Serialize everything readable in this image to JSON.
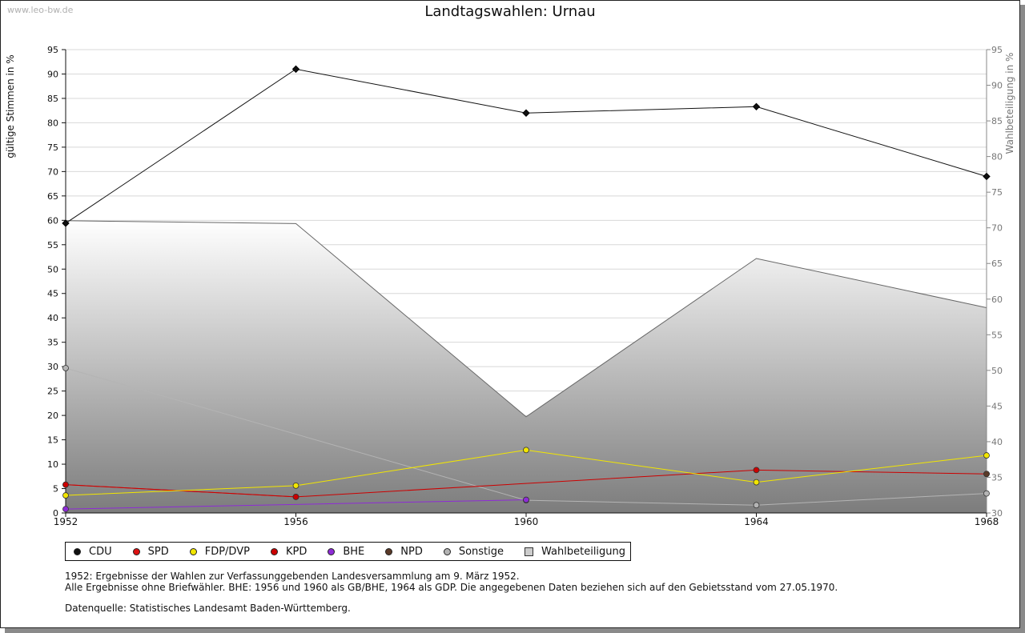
{
  "watermark": "www.leo-bw.de",
  "title": "Landtagswahlen: Urnau",
  "colors": {
    "CDU": "#111111",
    "SPD": "#dd1111",
    "FDP/DVP": "#f2e600",
    "KPD": "#cc0000",
    "BHE": "#8e2bd6",
    "NPD": "#5a3a28",
    "Sonstige": "#b4b4b4",
    "Wahlbeteiligung": "#cccccc"
  },
  "chart_data": {
    "type": "line",
    "title": "Landtagswahlen: Urnau",
    "xlabel": "",
    "ylabel": "gültige Stimmen in %",
    "y2label": "Wahlbeteiligung in %",
    "x": [
      1952,
      1956,
      1960,
      1964,
      1968
    ],
    "ylim": [
      0,
      95
    ],
    "y2lim": [
      30,
      95
    ],
    "yticks": [
      "0",
      "5",
      "10",
      "15",
      "20",
      "25",
      "30",
      "35",
      "40",
      "45",
      "50",
      "55",
      "60",
      "65",
      "70",
      "75",
      "80",
      "85",
      "90",
      "95"
    ],
    "y2ticks": [
      "30",
      "35",
      "40",
      "45",
      "50",
      "55",
      "60",
      "65",
      "70",
      "75",
      "80",
      "85",
      "90",
      "95"
    ],
    "xticks": [
      "1952",
      "1956",
      "1960",
      "1964",
      "1968"
    ],
    "grid": true,
    "legend_position": "bottom",
    "series": [
      {
        "name": "CDU",
        "values": [
          59.4,
          91.0,
          82.0,
          83.3,
          69.0
        ]
      },
      {
        "name": "SPD",
        "values": [
          5.8,
          3.3,
          null,
          null,
          null
        ]
      },
      {
        "name": "FDP/DVP",
        "values": [
          3.6,
          5.6,
          12.9,
          6.3,
          11.8
        ]
      },
      {
        "name": "KPD",
        "values": [
          5.8,
          3.3,
          null,
          8.8,
          8.0
        ]
      },
      {
        "name": "BHE",
        "values": [
          0.8,
          null,
          2.7,
          null,
          null
        ]
      },
      {
        "name": "NPD",
        "values": [
          null,
          null,
          null,
          null,
          8.0
        ]
      },
      {
        "name": "Sonstige",
        "values": [
          29.7,
          null,
          2.6,
          1.6,
          4.0
        ]
      }
    ],
    "turnout": {
      "name": "Wahlbeteiligung",
      "values": [
        71.0,
        70.6,
        43.5,
        65.7,
        58.8
      ]
    }
  },
  "legend": [
    "CDU",
    "SPD",
    "FDP/DVP",
    "KPD",
    "BHE",
    "NPD",
    "Sonstige",
    "Wahlbeteiligung"
  ],
  "notes": {
    "line1": "1952: Ergebnisse der Wahlen zur Verfassunggebenden Landesversammlung am 9. März 1952.",
    "line2": "Alle Ergebnisse ohne Briefwähler. BHE: 1956 und 1960 als GB/BHE, 1964 als GDP. Die angegebenen Daten beziehen sich auf den Gebietsstand vom 27.05.1970.",
    "source": "Datenquelle: Statistisches Landesamt Baden-Württemberg."
  }
}
